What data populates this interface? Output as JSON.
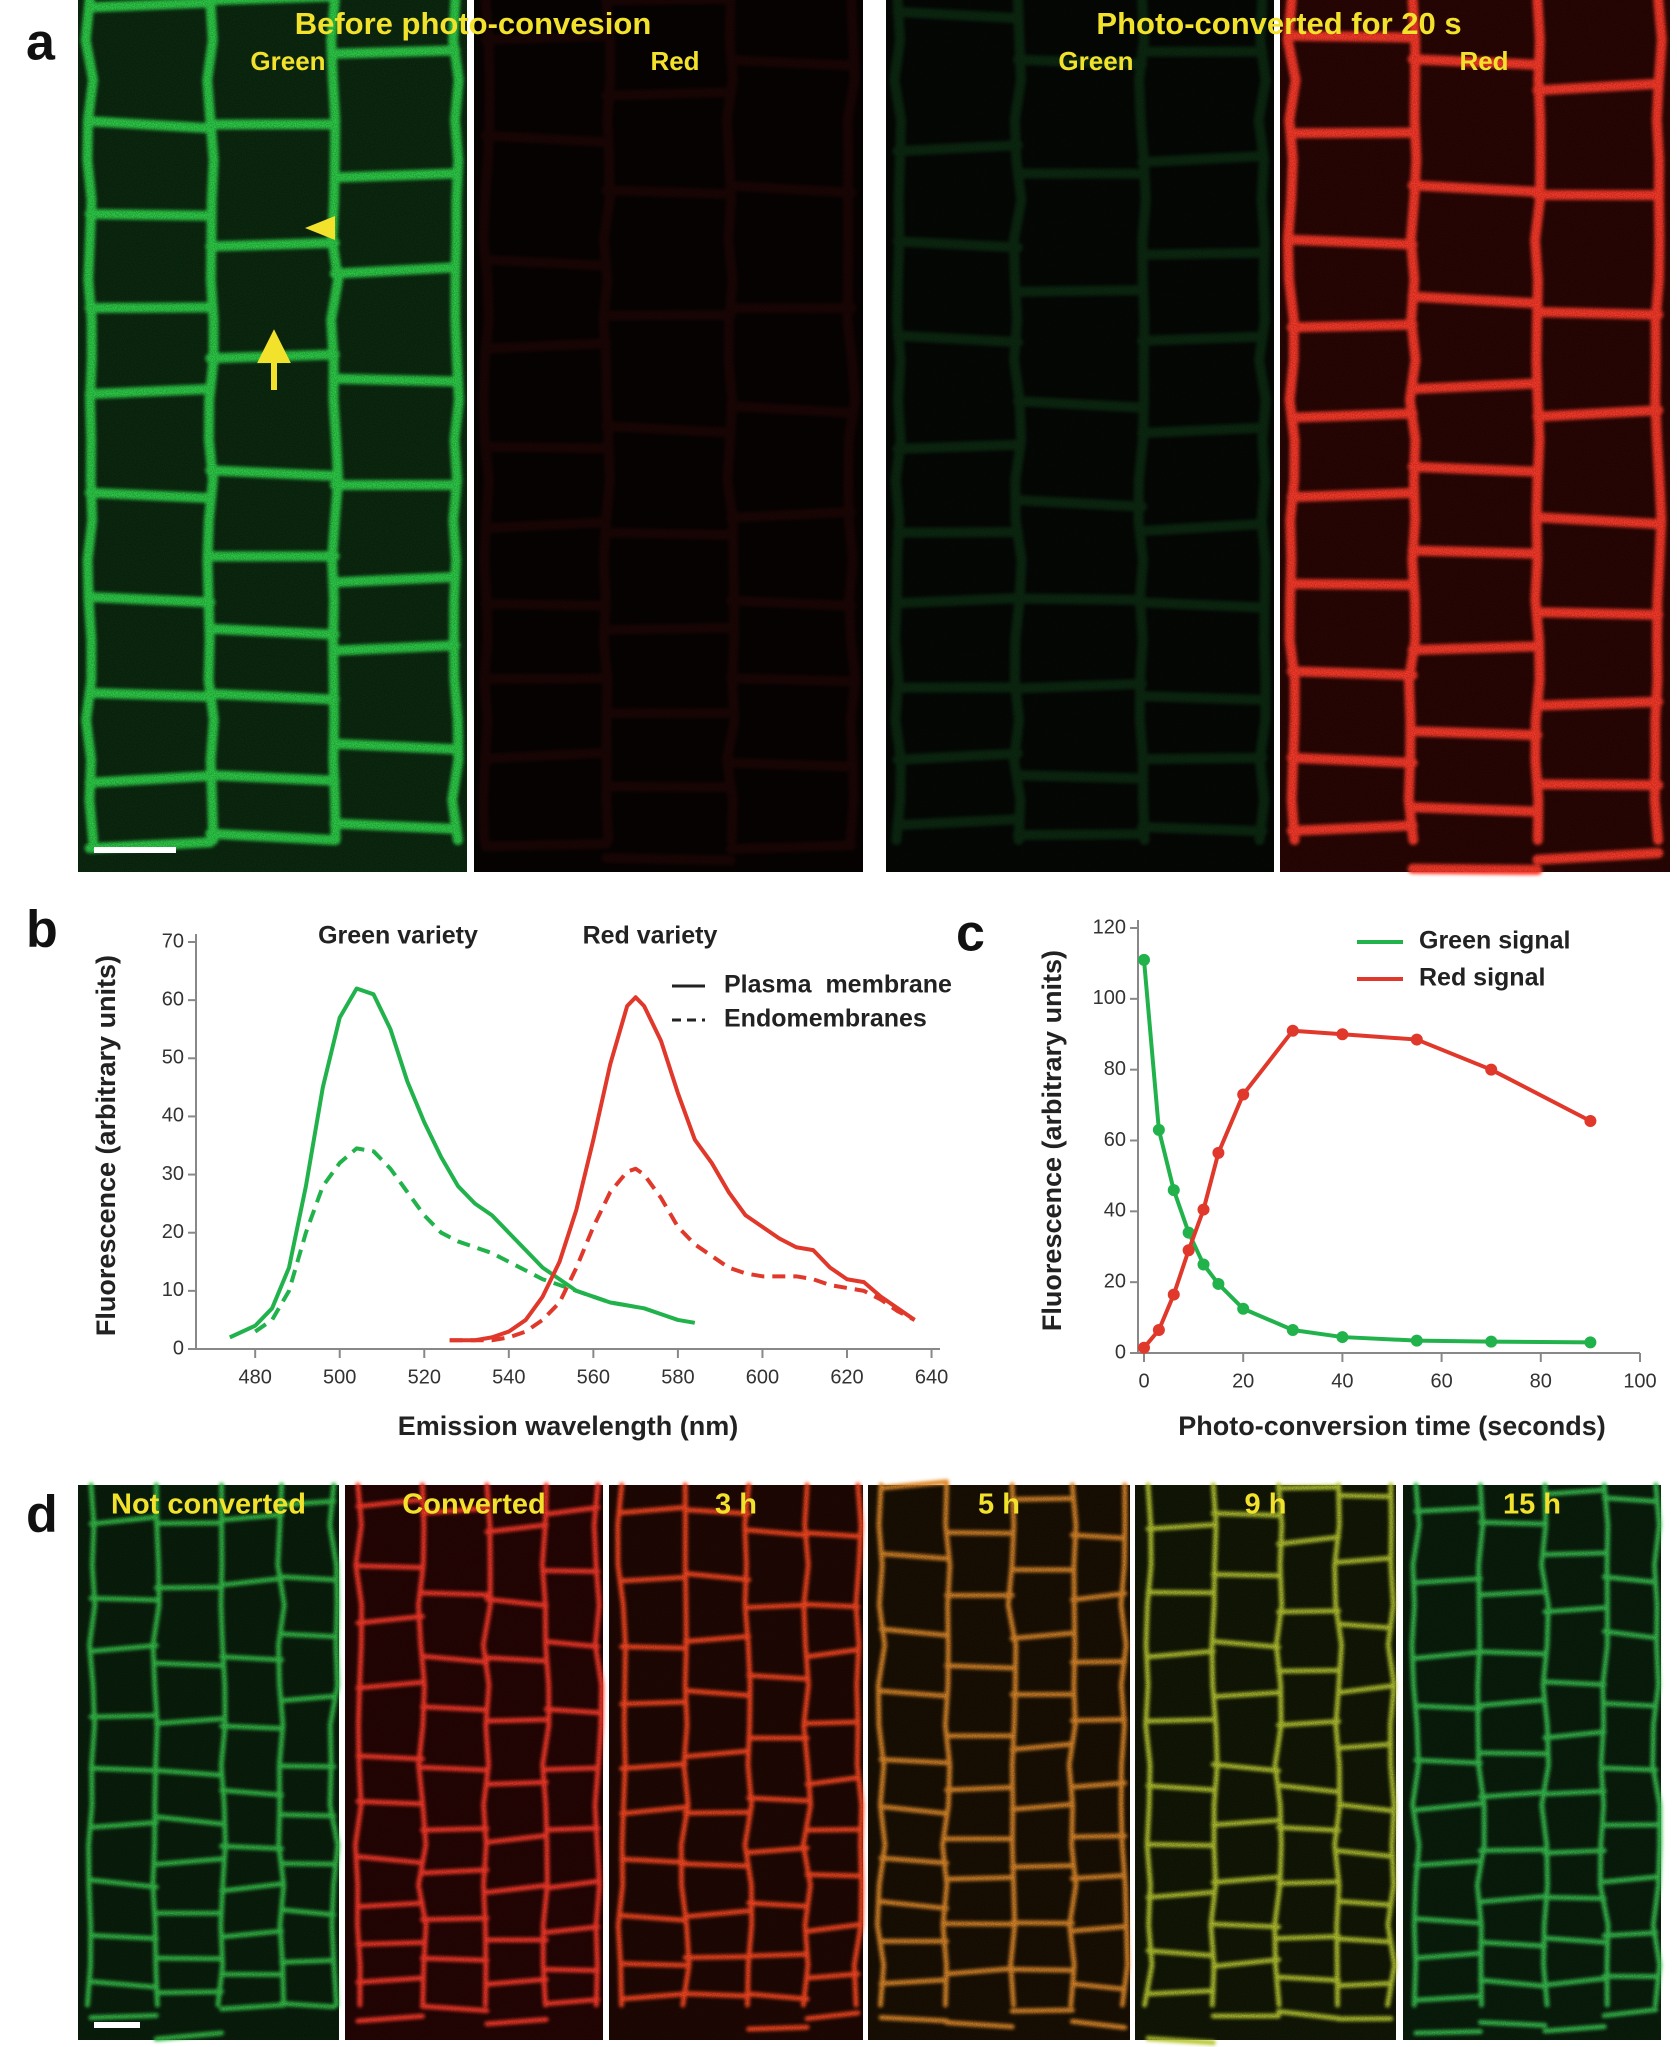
{
  "panels": {
    "a": {
      "label": "a",
      "titles": [
        "Before photo-convesion",
        "Photo-converted for 20 s"
      ],
      "images": [
        "Green",
        "Red",
        "Green",
        "Red"
      ]
    },
    "b": {
      "label": "b"
    },
    "c": {
      "label": "c"
    },
    "d": {
      "label": "d",
      "images": [
        "Not converted",
        "Converted",
        "3 h",
        "5 h",
        "9 h",
        "15 h"
      ]
    }
  },
  "chart_data": [
    {
      "type": "line",
      "x_label": "Emission wavelength (nm)",
      "y_label": "Fluorescence (arbitrary units)",
      "annotations": [
        "Green variety",
        "Red variety"
      ],
      "legend": [
        {
          "label": "Plasma  membrane",
          "style": "solid"
        },
        {
          "label": "Endomembranes",
          "style": "dashed"
        }
      ],
      "xlim": [
        466,
        642
      ],
      "ylim": [
        0,
        70
      ],
      "xticks": [
        480,
        500,
        520,
        540,
        560,
        580,
        600,
        620,
        640
      ],
      "yticks": [
        0,
        10,
        20,
        30,
        40,
        50,
        60,
        70
      ],
      "markers": false,
      "series": [
        {
          "color": "#22b24c",
          "style": "solid",
          "x": [
            474,
            480,
            484,
            488,
            492,
            496,
            500,
            504,
            508,
            512,
            516,
            520,
            524,
            528,
            532,
            536,
            540,
            544,
            548,
            552,
            556,
            560,
            564,
            568,
            572,
            576,
            580,
            584
          ],
          "values": [
            2,
            4,
            7,
            14,
            28,
            45,
            57,
            62,
            61,
            55,
            46,
            39,
            33,
            28,
            25,
            23,
            20,
            17,
            14,
            12,
            10,
            9,
            8,
            7.5,
            7,
            6,
            5,
            4.5
          ]
        },
        {
          "color": "#22b24c",
          "style": "dashed",
          "x": [
            480,
            484,
            488,
            492,
            496,
            500,
            504,
            508,
            512,
            516,
            520,
            524,
            528,
            532,
            536,
            540,
            544,
            548,
            552,
            556,
            560,
            564,
            568
          ],
          "values": [
            3,
            5,
            10,
            20,
            28,
            32,
            34.5,
            34,
            31,
            27,
            23,
            20,
            18.5,
            17.5,
            16.5,
            15,
            13.5,
            12,
            11,
            10,
            9,
            8,
            7.5
          ]
        },
        {
          "color": "#e0382a",
          "style": "solid",
          "x": [
            526,
            532,
            536,
            540,
            544,
            548,
            552,
            556,
            560,
            564,
            568,
            570,
            572,
            576,
            580,
            584,
            588,
            592,
            596,
            600,
            604,
            608,
            612,
            616,
            620,
            624,
            628,
            632,
            636
          ],
          "values": [
            1.5,
            1.5,
            2,
            3,
            5,
            9,
            15,
            24,
            36,
            49,
            59,
            60.5,
            59,
            53,
            44,
            36,
            32,
            27,
            23,
            21,
            19,
            17.5,
            17,
            14,
            12,
            11.5,
            9,
            7,
            5
          ]
        },
        {
          "color": "#e0382a",
          "style": "dashed",
          "x": [
            526,
            536,
            540,
            544,
            548,
            552,
            556,
            560,
            564,
            568,
            570,
            572,
            576,
            580,
            584,
            588,
            592,
            596,
            600,
            604,
            608,
            612,
            616,
            620,
            624,
            628,
            632,
            636
          ],
          "values": [
            1.5,
            1.5,
            2,
            3,
            5,
            8,
            14,
            21,
            27,
            30.5,
            31,
            30,
            26,
            21,
            18,
            16,
            14,
            13,
            12.5,
            12.5,
            12.5,
            12,
            11,
            10.5,
            10,
            8.5,
            6.5,
            5
          ]
        }
      ]
    },
    {
      "type": "line",
      "x_label": "Photo-conversion time (seconds)",
      "y_label": "Fluorescence (arbitrary units)",
      "xlim": [
        0,
        100
      ],
      "ylim": [
        0,
        120
      ],
      "xticks": [
        0,
        20,
        40,
        60,
        80,
        100
      ],
      "yticks": [
        0,
        20,
        40,
        60,
        80,
        100,
        120
      ],
      "markers": true,
      "legend_position": "upper right",
      "x": [
        0,
        3,
        6,
        9,
        12,
        15,
        20,
        30,
        40,
        55,
        70,
        90
      ],
      "series": [
        {
          "name": "Green signal",
          "color": "#22b24c",
          "style": "solid",
          "values": [
            111,
            63,
            46,
            34,
            25,
            19.5,
            12.5,
            6.5,
            4.5,
            3.5,
            3.2,
            3
          ]
        },
        {
          "name": "Red signal",
          "color": "#e0382a",
          "style": "solid",
          "values": [
            1.5,
            6.5,
            16.5,
            29,
            40.5,
            56.5,
            73,
            91,
            90,
            88.5,
            80,
            65.5
          ]
        }
      ]
    }
  ]
}
